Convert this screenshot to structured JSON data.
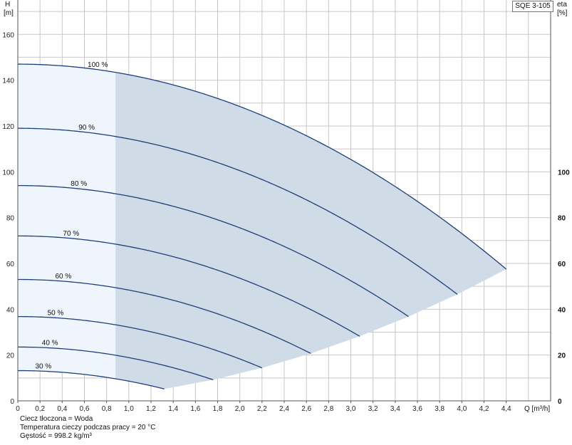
{
  "model": "SQE 3-105",
  "chart_data": {
    "type": "line",
    "title": "SQE 3-105",
    "xlabel": "Q [m³/h]",
    "ylabel_left": "H\n[m]",
    "ylabel_right": "eta\n[%]",
    "xlim": [
      0,
      4.8
    ],
    "ylim": [
      0,
      175
    ],
    "x_ticks": [
      "0",
      "0,2",
      "0,4",
      "0,6",
      "0,8",
      "1,0",
      "1,2",
      "1,4",
      "1,6",
      "1,8",
      "2,0",
      "2,2",
      "2,4",
      "2,6",
      "2,8",
      "3,0",
      "3,2",
      "3,4",
      "3,6",
      "3,8",
      "4,0",
      "4,2",
      "4,4"
    ],
    "y_ticks_left": [
      0,
      20,
      40,
      60,
      80,
      100,
      120,
      140,
      160
    ],
    "y_ticks_right": [
      0,
      20,
      40,
      60,
      80,
      100
    ],
    "grid": true,
    "shaded_region_min_q": 0.88,
    "series": [
      {
        "name": "100 %",
        "h0": 147,
        "q_end": 4.4,
        "h_end": 57.5
      },
      {
        "name": "90 %",
        "h0": 119,
        "q_end": 3.96,
        "h_end": 46.5
      },
      {
        "name": "80 %",
        "h0": 94,
        "q_end": 3.52,
        "h_end": 36.8
      },
      {
        "name": "70 %",
        "h0": 72,
        "q_end": 3.08,
        "h_end": 28.2
      },
      {
        "name": "60 %",
        "h0": 53,
        "q_end": 2.64,
        "h_end": 20.7
      },
      {
        "name": "50 %",
        "h0": 36.8,
        "q_end": 2.2,
        "h_end": 14.4
      },
      {
        "name": "40 %",
        "h0": 23.5,
        "q_end": 1.76,
        "h_end": 9.2
      },
      {
        "name": "30 %",
        "h0": 13.2,
        "q_end": 1.32,
        "h_end": 5.2
      }
    ]
  },
  "notes": {
    "line1": "Ciecz tłoczona = Woda",
    "line2": "Temperatura cieczy podczas pracy = 20 °C",
    "line3": "Gęstość = 998.2 kg/m³"
  },
  "colors": {
    "curve": "#1f3f7a",
    "region_dark": "#cfdbe6",
    "region_light": "#eef5fc",
    "grid": "#c8c8c8"
  }
}
